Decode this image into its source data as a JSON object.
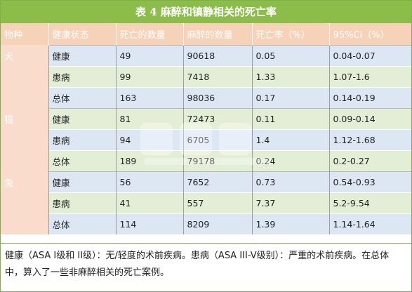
{
  "title": "表 4  麻醉和镇静相关的死亡率",
  "headers": [
    "物种",
    "健康状态",
    "死亡的数量",
    "麻醉的数量",
    "死亡率（%）",
    "95%CI（%）"
  ],
  "groups": [
    {
      "species": "犬",
      "rows": [
        [
          "健康",
          "49",
          "90618",
          "0.05",
          "0.04-0.07"
        ],
        [
          "患病",
          "99",
          "7418",
          "1.33",
          "1.07-1.6"
        ],
        [
          "总体",
          "163",
          "98036",
          "0.17",
          "0.14-0.19"
        ]
      ]
    },
    {
      "species": "猫",
      "rows": [
        [
          "健康",
          "81",
          "72473",
          "0.11",
          "0.09-0.14"
        ],
        [
          "患病",
          "94",
          "6705",
          "1.4",
          "1.12-1.68"
        ],
        [
          "总体",
          "189",
          "79178",
          "0.24",
          "0.2-0.27"
        ]
      ]
    },
    {
      "species": "兔",
      "rows": [
        [
          "健康",
          "56",
          "7652",
          "0.73",
          "0.54-0.93"
        ],
        [
          "患病",
          "41",
          "557",
          "7.37",
          "5.2-9.54"
        ],
        [
          "总体",
          "114",
          "8209",
          "1.39",
          "1.14-1.64"
        ]
      ]
    }
  ],
  "footnote": "健康（ASA I级和 II级）：无/轻度的术前疾病。患病（ASA III-V级别）：严重的术前疾病。在总体中，算入了一些非麻醉相关的死亡案例。",
  "colors": {
    "title_bg": "#8cbd4b",
    "header_bg": "#f6d2b8",
    "row_blue": "#dde7f4",
    "row_green": "#e4eed6"
  }
}
